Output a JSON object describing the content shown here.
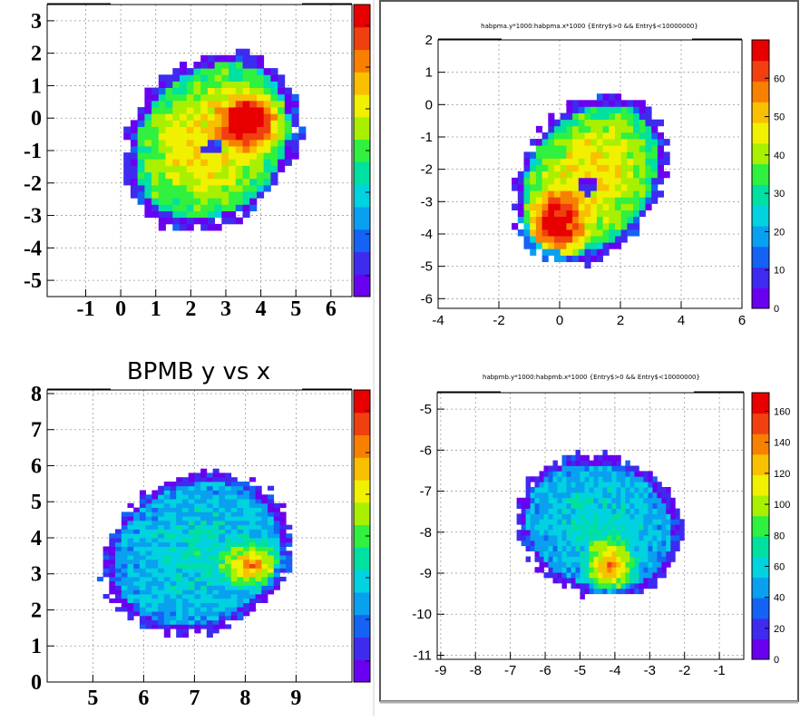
{
  "figure": {
    "colors": {
      "background": "#ffffff",
      "frame": "#000000",
      "grid": "#999999",
      "window_border": "#5a5a5a"
    },
    "palette": [
      "#6a00f0",
      "#3f2bf0",
      "#1463f5",
      "#0aa0f0",
      "#00d2e0",
      "#00e0a0",
      "#30f040",
      "#a8f000",
      "#f0f000",
      "#f8c000",
      "#f88000",
      "#f04010",
      "#e80000"
    ]
  },
  "chart_data": [
    {
      "id": "top-left",
      "type": "heatmap",
      "title": "",
      "xlim": [
        -2.1,
        6.6
      ],
      "ylim": [
        -5.5,
        3.5
      ],
      "x_ticks": [
        "-1",
        "0",
        "1",
        "2",
        "3",
        "4",
        "5",
        "6"
      ],
      "x_tick_values": [
        -1,
        0,
        1,
        2,
        3,
        4,
        5,
        6
      ],
      "y_ticks": [
        "3",
        "2",
        "1",
        "0",
        "-1",
        "-2",
        "-3",
        "-4",
        "-5"
      ],
      "y_tick_values": [
        3,
        2,
        1,
        0,
        -1,
        -2,
        -3,
        -4,
        -5
      ],
      "tick_style": "bold-serif",
      "colorbar_labels": [
        "",
        "",
        "",
        "",
        "",
        "",
        ""
      ],
      "blob": {
        "cx": 2.5,
        "cy": -0.8,
        "rx": 2.3,
        "ry": 2.9,
        "rot": -35,
        "hot_x": 3.6,
        "hot_y": -0.2,
        "hot_r": 1.1,
        "hole_x": 2.5,
        "hole_y": -1.0,
        "hole_r": 0.25,
        "ring": false,
        "cell": 0.2
      }
    },
    {
      "id": "top-right",
      "type": "heatmap",
      "title": "habpma.y*1000:habpma.x*1000 {Entry$>0 && Entry$<10000000}",
      "xlim": [
        -4,
        6
      ],
      "ylim": [
        -6.3,
        2
      ],
      "x_ticks": [
        "-4",
        "-2",
        "0",
        "2",
        "4",
        "6"
      ],
      "x_tick_values": [
        -4,
        -2,
        0,
        2,
        4,
        6
      ],
      "y_ticks": [
        "2",
        "1",
        "0",
        "-1",
        "-2",
        "-3",
        "-4",
        "-5",
        "-6"
      ],
      "y_tick_values": [
        2,
        1,
        0,
        -1,
        -2,
        -3,
        -4,
        -5,
        -6
      ],
      "tick_style": "sans",
      "colorbar_labels": [
        "0",
        "10",
        "20",
        "30",
        "40",
        "50",
        "60"
      ],
      "colorbar_values": [
        0,
        10,
        20,
        30,
        40,
        50,
        60
      ],
      "colorbar_max": 70,
      "blob": {
        "cx": 0.9,
        "cy": -2.4,
        "rx": 2.2,
        "ry": 2.9,
        "rot": -40,
        "hot_x": -0.3,
        "hot_y": -3.9,
        "hot_r": 1.3,
        "hole_x": 0.8,
        "hole_y": -2.6,
        "hole_r": 0.3,
        "ring": false,
        "cell": 0.2
      }
    },
    {
      "id": "bottom-left",
      "type": "heatmap",
      "title": "BPMB y vs x",
      "xlim": [
        4.1,
        10.1
      ],
      "ylim": [
        0,
        8.1
      ],
      "x_ticks": [
        "5",
        "6",
        "7",
        "8",
        "9"
      ],
      "x_tick_values": [
        5,
        6,
        7,
        8,
        9
      ],
      "y_ticks": [
        "8",
        "7",
        "6",
        "5",
        "4",
        "3",
        "2",
        "1",
        "0"
      ],
      "y_tick_values": [
        8,
        7,
        6,
        5,
        4,
        3,
        2,
        1,
        0
      ],
      "tick_style": "bold-serif",
      "colorbar_labels": [
        "",
        "",
        "",
        "",
        "",
        "",
        ""
      ],
      "blob": {
        "cx": 7.0,
        "cy": 3.5,
        "rx": 1.8,
        "ry": 2.3,
        "rot": -20,
        "hot_x": 8.1,
        "hot_y": 3.2,
        "hot_r": 0.8,
        "hole_x": 0,
        "hole_y": 0,
        "hole_r": 0,
        "ring": true,
        "cell": 0.12
      }
    },
    {
      "id": "bottom-right",
      "type": "heatmap",
      "title": "habpmb.y*1000:habpmb.x*1000 {Entry$>0 && Entry$<10000000}",
      "xlim": [
        -9.1,
        -0.3
      ],
      "ylim": [
        -11.1,
        -4.6
      ],
      "x_ticks": [
        "-9",
        "-8",
        "-7",
        "-6",
        "-5",
        "-4",
        "-3",
        "-2",
        "-1"
      ],
      "x_tick_values": [
        -9,
        -8,
        -7,
        -6,
        -5,
        -4,
        -3,
        -2,
        -1
      ],
      "y_ticks": [
        "-5",
        "-6",
        "-7",
        "-8",
        "-9",
        "-10",
        "-11"
      ],
      "y_tick_values": [
        -5,
        -6,
        -7,
        -8,
        -9,
        -10,
        -11
      ],
      "tick_style": "sans",
      "colorbar_labels": [
        "0",
        "20",
        "40",
        "60",
        "80",
        "100",
        "120",
        "140",
        "160"
      ],
      "colorbar_values": [
        0,
        20,
        40,
        60,
        80,
        100,
        120,
        140,
        160
      ],
      "colorbar_max": 172,
      "blob": {
        "cx": -4.5,
        "cy": -7.9,
        "rx": 2.4,
        "ry": 1.7,
        "rot": -10,
        "hot_x": -4.2,
        "hot_y": -8.9,
        "hot_r": 0.9,
        "hole_x": 0,
        "hole_y": 0,
        "hole_r": 0,
        "ring": true,
        "cell": 0.13
      }
    }
  ]
}
